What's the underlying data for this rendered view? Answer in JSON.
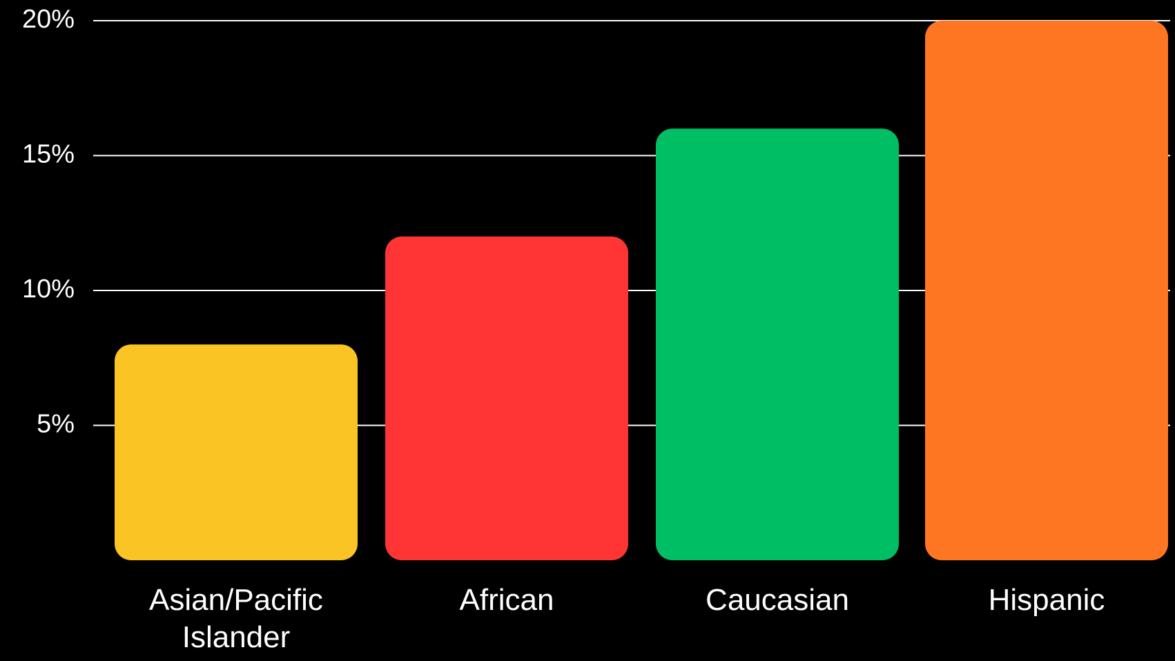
{
  "chart_data": {
    "type": "bar",
    "title": "",
    "xlabel": "",
    "ylabel": "",
    "categories": [
      "Asian/Pacific Islander",
      "African",
      "Caucasian",
      "Hispanic"
    ],
    "category_label_lines": [
      [
        "Asian/Pacific",
        "Islander"
      ],
      [
        "African"
      ],
      [
        "Caucasian"
      ],
      [
        "Hispanic"
      ]
    ],
    "values": [
      8,
      12,
      16,
      20
    ],
    "unit": "%",
    "ylim": [
      0,
      20
    ],
    "yticks": [
      5,
      10,
      15,
      20
    ],
    "ytick_labels": [
      "5%",
      "10%",
      "15%",
      "20%"
    ],
    "grid": true,
    "legend": "none",
    "bar_colors": [
      "#FBC425",
      "#FF3434",
      "#00BE63",
      "#FF7622"
    ],
    "background": "#000000",
    "gridline_color": "#ffffff"
  }
}
